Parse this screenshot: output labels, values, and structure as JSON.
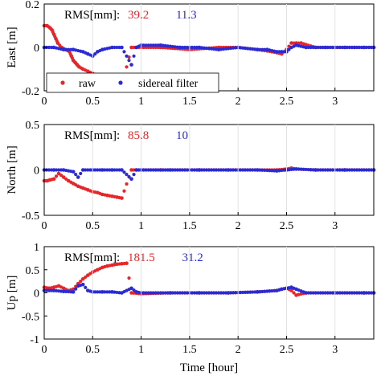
{
  "chart_data": [
    {
      "type": "scatter",
      "ylabel": "East [m]",
      "ylim": [
        -0.2,
        0.2
      ],
      "yticks": [
        "0.2",
        "0",
        "-0.2"
      ],
      "xlim": [
        0,
        3.4
      ],
      "xticks": [
        "0",
        "0.5",
        "1",
        "1.5",
        "2",
        "2.5",
        "3"
      ],
      "grid": "vertical",
      "annotation": {
        "label": "RMS[mm]:",
        "raw": "39.2",
        "filtered": "11.3"
      },
      "legend": {
        "placement": "bottom-left",
        "entries": [
          "raw",
          "sidereal filter"
        ]
      },
      "series": [
        {
          "name": "raw",
          "color": "#e8262a",
          "x": [
            0.0,
            0.03,
            0.06,
            0.08,
            0.1,
            0.12,
            0.14,
            0.18,
            0.22,
            0.26,
            0.28,
            0.3,
            0.32,
            0.34,
            0.36,
            0.4,
            0.45,
            0.5,
            0.55,
            0.6,
            0.65,
            0.7,
            0.75,
            0.8,
            0.9,
            1.2,
            1.5,
            1.8,
            2.0,
            2.2,
            2.35,
            2.45,
            2.5,
            2.55,
            2.6,
            2.65,
            2.8,
            3.0,
            3.2,
            3.4
          ],
          "y": [
            0.1,
            0.1,
            0.09,
            0.08,
            0.06,
            0.04,
            0.02,
            0.0,
            -0.01,
            -0.02,
            -0.04,
            -0.06,
            -0.07,
            -0.08,
            -0.09,
            -0.1,
            -0.11,
            -0.12,
            -0.13,
            -0.14,
            -0.15,
            -0.16,
            -0.17,
            -0.18,
            0.0,
            0.0,
            -0.01,
            0.0,
            0.0,
            -0.01,
            -0.02,
            -0.03,
            -0.01,
            0.02,
            0.02,
            0.02,
            0.0,
            0.0,
            0.0,
            0.0
          ]
        },
        {
          "name": "sidereal filter",
          "color": "#2b2bd6",
          "x": [
            0.0,
            0.1,
            0.2,
            0.3,
            0.4,
            0.45,
            0.5,
            0.55,
            0.6,
            0.7,
            0.8,
            0.9,
            0.95,
            1.0,
            1.2,
            1.4,
            1.6,
            1.8,
            2.0,
            2.2,
            2.3,
            2.4,
            2.45,
            2.5,
            2.55,
            2.6,
            2.7,
            2.9,
            3.1,
            3.3,
            3.4
          ],
          "y": [
            0.0,
            0.0,
            -0.01,
            -0.01,
            -0.02,
            -0.03,
            -0.04,
            -0.02,
            -0.01,
            0.0,
            0.0,
            -0.08,
            0.0,
            0.01,
            0.01,
            0.0,
            0.0,
            -0.01,
            0.0,
            -0.01,
            -0.01,
            -0.02,
            -0.02,
            -0.02,
            0.0,
            0.01,
            0.0,
            0.0,
            0.0,
            0.0,
            0.0
          ]
        }
      ]
    },
    {
      "type": "scatter",
      "ylabel": "North [m]",
      "ylim": [
        -0.5,
        0.5
      ],
      "yticks": [
        "0.5",
        "0",
        "-0.5"
      ],
      "xlim": [
        0,
        3.4
      ],
      "xticks": [
        "0",
        "0.5",
        "1",
        "1.5",
        "2",
        "2.5",
        "3"
      ],
      "grid": "vertical",
      "annotation": {
        "label": "RMS[mm]:",
        "raw": "85.8",
        "filtered": "10"
      },
      "series": [
        {
          "name": "raw",
          "color": "#e8262a",
          "x": [
            0.0,
            0.03,
            0.06,
            0.1,
            0.15,
            0.2,
            0.25,
            0.3,
            0.35,
            0.4,
            0.45,
            0.5,
            0.55,
            0.6,
            0.65,
            0.7,
            0.75,
            0.8,
            0.9,
            1.2,
            1.6,
            2.0,
            2.4,
            2.5,
            2.55,
            2.6,
            2.8,
            3.1,
            3.4
          ],
          "y": [
            -0.12,
            -0.12,
            -0.11,
            -0.1,
            -0.04,
            -0.08,
            -0.12,
            -0.15,
            -0.18,
            -0.2,
            -0.22,
            -0.24,
            -0.25,
            -0.27,
            -0.28,
            -0.29,
            -0.3,
            -0.31,
            0.0,
            0.0,
            0.0,
            0.0,
            0.0,
            0.01,
            0.02,
            0.01,
            0.0,
            0.0,
            0.0
          ]
        },
        {
          "name": "sidereal filter",
          "color": "#2b2bd6",
          "x": [
            0.0,
            0.1,
            0.2,
            0.3,
            0.35,
            0.4,
            0.5,
            0.6,
            0.7,
            0.8,
            0.9,
            0.95,
            1.0,
            1.3,
            1.6,
            1.9,
            2.2,
            2.4,
            2.5,
            2.6,
            2.8,
            3.1,
            3.4
          ],
          "y": [
            0.0,
            0.0,
            0.0,
            -0.02,
            -0.08,
            0.0,
            0.0,
            0.0,
            0.0,
            0.0,
            -0.1,
            0.0,
            0.0,
            0.0,
            0.0,
            0.0,
            0.0,
            -0.01,
            0.0,
            0.01,
            0.0,
            0.0,
            0.0
          ]
        }
      ]
    },
    {
      "type": "scatter",
      "ylabel": "Up [m]",
      "ylim": [
        -1,
        1
      ],
      "yticks": [
        "1",
        "0.5",
        "0",
        "-0.5",
        "-1"
      ],
      "xlim": [
        0,
        3.4
      ],
      "xticks": [
        "0",
        "0.5",
        "1",
        "1.5",
        "2",
        "2.5",
        "3"
      ],
      "xlabel": "Time [hour]",
      "grid": "vertical",
      "annotation": {
        "label": "RMS[mm]:",
        "raw": "181.5",
        "filtered": "31.2"
      },
      "series": [
        {
          "name": "raw",
          "color": "#e8262a",
          "x": [
            0.0,
            0.05,
            0.1,
            0.15,
            0.2,
            0.25,
            0.3,
            0.35,
            0.4,
            0.45,
            0.5,
            0.55,
            0.6,
            0.65,
            0.7,
            0.75,
            0.8,
            0.85,
            0.9,
            1.0,
            1.3,
            1.6,
            1.9,
            2.2,
            2.4,
            2.45,
            2.5,
            2.55,
            2.6,
            2.7,
            3.0,
            3.3,
            3.4
          ],
          "y": [
            0.12,
            0.1,
            0.12,
            0.15,
            0.1,
            0.05,
            0.08,
            0.2,
            0.3,
            0.38,
            0.45,
            0.5,
            0.55,
            0.58,
            0.6,
            0.62,
            0.63,
            0.64,
            0.0,
            -0.02,
            0.0,
            0.0,
            0.0,
            0.02,
            0.05,
            0.08,
            0.1,
            0.05,
            -0.05,
            0.0,
            0.0,
            0.0,
            0.0
          ]
        },
        {
          "name": "sidereal filter",
          "color": "#2b2bd6",
          "x": [
            0.0,
            0.1,
            0.2,
            0.3,
            0.35,
            0.4,
            0.45,
            0.5,
            0.6,
            0.7,
            0.8,
            0.9,
            0.95,
            1.0,
            1.3,
            1.6,
            1.9,
            2.2,
            2.4,
            2.45,
            2.5,
            2.55,
            2.6,
            2.7,
            3.0,
            3.3,
            3.4
          ],
          "y": [
            0.05,
            0.05,
            0.03,
            0.02,
            0.15,
            0.18,
            0.05,
            0.02,
            0.02,
            0.02,
            0.0,
            0.1,
            0.02,
            0.0,
            0.0,
            0.0,
            0.0,
            0.02,
            0.05,
            0.08,
            0.1,
            0.12,
            0.08,
            0.0,
            0.0,
            0.0,
            0.0
          ]
        }
      ]
    }
  ]
}
